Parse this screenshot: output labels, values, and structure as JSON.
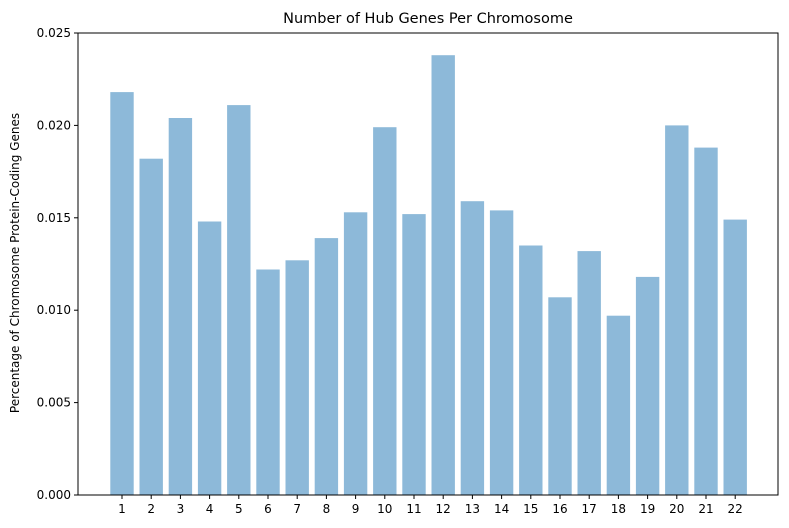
{
  "chart_data": {
    "type": "bar",
    "title": "Number of Hub Genes Per Chromosome",
    "xlabel": "",
    "ylabel": "Percentage of Chromosome Protein-Coding Genes",
    "categories": [
      "1",
      "2",
      "3",
      "4",
      "5",
      "6",
      "7",
      "8",
      "9",
      "10",
      "11",
      "12",
      "13",
      "14",
      "15",
      "16",
      "17",
      "18",
      "19",
      "20",
      "21",
      "22"
    ],
    "values": [
      0.0218,
      0.0182,
      0.0204,
      0.0148,
      0.0211,
      0.0122,
      0.0127,
      0.0139,
      0.0153,
      0.0199,
      0.0152,
      0.0238,
      0.0159,
      0.0154,
      0.0135,
      0.0107,
      0.0132,
      0.0097,
      0.0118,
      0.02,
      0.0188,
      0.0149
    ],
    "ylim": [
      0,
      0.025
    ],
    "yticks": [
      "0.000",
      "0.005",
      "0.010",
      "0.015",
      "0.020",
      "0.025"
    ],
    "ytick_values": [
      0,
      0.005,
      0.01,
      0.015,
      0.02,
      0.025
    ],
    "bar_color": "#8db9d9",
    "grid": false,
    "legend": "none"
  }
}
